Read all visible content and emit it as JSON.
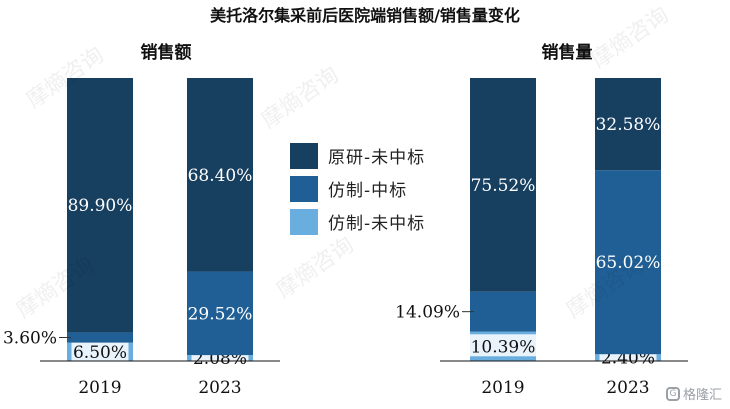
{
  "title": "美托洛尔集采前后医院端销售额/销售量变化",
  "colors": {
    "original_not_won": "#173f60",
    "generic_won": "#1f5f95",
    "generic_not_won": "#6aaee0"
  },
  "legend": [
    {
      "label": "原研-未中标",
      "color": "#173f60"
    },
    {
      "label": "仿制-中标",
      "color": "#1f5f95"
    },
    {
      "label": "仿制-未中标",
      "color": "#6aaee0"
    }
  ],
  "chart_data": [
    {
      "type": "bar",
      "stacked": true,
      "title": "销售额",
      "categories": [
        "2019",
        "2023"
      ],
      "series": [
        {
          "name": "仿制-未中标",
          "values": [
            6.5,
            2.08
          ],
          "labels": [
            "6.50%",
            "2.08%"
          ]
        },
        {
          "name": "仿制-中标",
          "values": [
            3.6,
            29.52
          ],
          "labels": [
            "3.60%",
            "29.52%"
          ]
        },
        {
          "name": "原研-未中标",
          "values": [
            89.9,
            68.4
          ],
          "labels": [
            "89.90%",
            "68.40%"
          ]
        }
      ],
      "ylim": [
        0,
        100
      ]
    },
    {
      "type": "bar",
      "stacked": true,
      "title": "销售量",
      "categories": [
        "2019",
        "2023"
      ],
      "series": [
        {
          "name": "仿制-未中标",
          "values": [
            10.39,
            2.4
          ],
          "labels": [
            "10.39%",
            "2.40%"
          ]
        },
        {
          "name": "仿制-中标",
          "values": [
            14.09,
            65.02
          ],
          "labels": [
            "14.09%",
            "65.02%"
          ]
        },
        {
          "name": "原研-未中标",
          "values": [
            75.52,
            32.58
          ],
          "labels": [
            "75.52%",
            "32.58%"
          ]
        }
      ],
      "ylim": [
        0,
        100
      ]
    }
  ],
  "watermark": "摩熵咨询",
  "brand": {
    "icon": "G",
    "text": "格隆汇"
  }
}
